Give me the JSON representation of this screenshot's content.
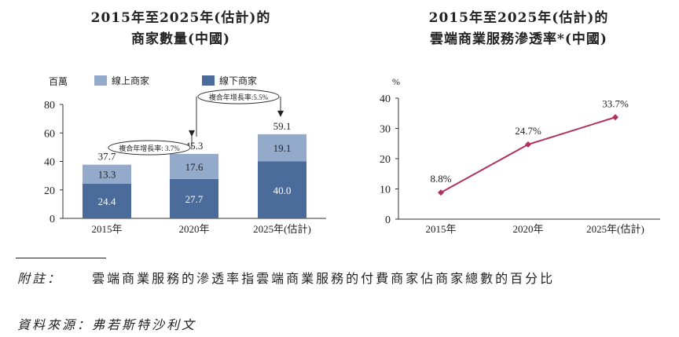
{
  "chart_data": [
    {
      "type": "bar",
      "stacked": true,
      "title": "2015年至2025年(估計)的",
      "subtitle": "商家數量(中國)",
      "unit": "百萬",
      "categories": [
        "2015年",
        "2020年",
        "2025年(估計)"
      ],
      "series": [
        {
          "name": "線下商家",
          "values": [
            24.4,
            27.7,
            40.0
          ],
          "color": "#4b6b9b"
        },
        {
          "name": "線上商家",
          "values": [
            13.3,
            17.6,
            19.1
          ],
          "color": "#94aacb"
        }
      ],
      "totals": [
        37.7,
        45.3,
        59.1
      ],
      "ylim": [
        0,
        80
      ],
      "yticks": [
        0,
        20,
        40,
        60,
        80
      ],
      "annotations": [
        {
          "text": "複合年增長率: 3.7%"
        },
        {
          "text": "複合年增長率:5.5%"
        }
      ],
      "legend": "top"
    },
    {
      "type": "line",
      "title": "2015年至2025年(估計)的",
      "subtitle": "雲端商業服務滲透率*(中國)",
      "unit": "%",
      "categories": [
        "2015年",
        "2020年",
        "2025年(估計)"
      ],
      "values": [
        8.8,
        24.7,
        33.7
      ],
      "labels": [
        "8.8%",
        "24.7%",
        "33.7%"
      ],
      "color": "#b0325e",
      "ylim": [
        0,
        40
      ],
      "yticks": [
        0,
        10,
        20,
        30,
        40
      ]
    }
  ],
  "notes": {
    "label": "附註：",
    "text": "雲端商業服務的滲透率指雲端商業服務的付費商家佔商家總數的百分比",
    "source_label": "資料來源：",
    "source": "弗若斯特沙利文"
  }
}
